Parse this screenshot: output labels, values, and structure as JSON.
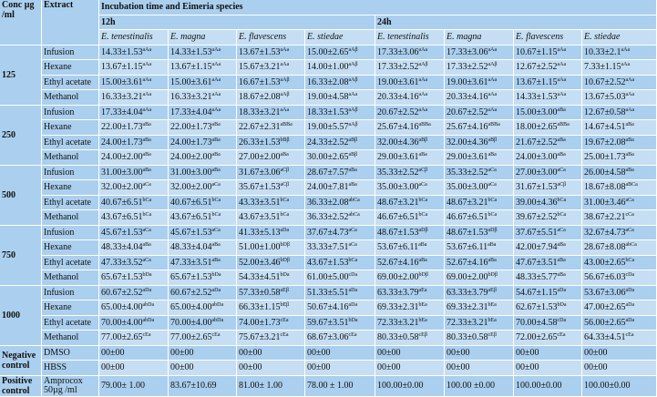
{
  "header": {
    "conc": "Conc µg /ml",
    "extract": "Extract",
    "incubation": "Incubation time and Eimeria species",
    "time_12h": "12h",
    "time_24h": "24h",
    "species": [
      "E. tenestinalis",
      "E. magna",
      "E. flavescens",
      "E. stiedae",
      "E. tenestinalis",
      "E. magna",
      "E. flavescens",
      "E. stiedae"
    ]
  },
  "groups": [
    {
      "conc": "125",
      "rows": [
        {
          "extract": "Infusion",
          "cells": [
            [
              "14.33±1.53",
              "aAa"
            ],
            [
              "14.33±1.53",
              "aAa"
            ],
            [
              "13.67±1.53",
              "aAa"
            ],
            [
              "15.00±2.65",
              "aAβ"
            ],
            [
              "17.33±3.06",
              "aAa"
            ],
            [
              "17.33±3.06",
              "aAa"
            ],
            [
              "10.67±1.15",
              "aAa"
            ],
            [
              "10.33±2.1",
              "aAa"
            ]
          ]
        },
        {
          "extract": "Hexane",
          "cells": [
            [
              "13.67±1.15",
              "aAa"
            ],
            [
              "13.67±1.15",
              "aAa"
            ],
            [
              "15.67±3.21",
              "aAa"
            ],
            [
              "14.00±1.00",
              "aAβ"
            ],
            [
              "17.33±2.52",
              "aAβ"
            ],
            [
              "17.33±2.52",
              "aAβ"
            ],
            [
              "12.67±2.52",
              "aAa"
            ],
            [
              "7.33±1.15",
              "aAa"
            ]
          ]
        },
        {
          "extract": "Ethyl acetate",
          "cells": [
            [
              "15.00±3.61",
              "aAa"
            ],
            [
              "15.00±3.61",
              "aAa"
            ],
            [
              "16.67±1.53",
              "aAβ"
            ],
            [
              "16.33±2.08",
              "aAβ"
            ],
            [
              "19.00±3.61",
              "aAa"
            ],
            [
              "19.00±3.61",
              "aAa"
            ],
            [
              "13.67±1.15",
              "aAa"
            ],
            [
              "10.67±2.52",
              "aAa"
            ]
          ]
        },
        {
          "extract": "Methanol",
          "cells": [
            [
              "16.33±3.21",
              "aAa"
            ],
            [
              "16.33±3.21",
              "aAa"
            ],
            [
              "18.67±2.08",
              "aAβ"
            ],
            [
              "19.00±4.58",
              "aAa"
            ],
            [
              "20.33±4.16",
              "aAa"
            ],
            [
              "20.33±4.16",
              "aAa"
            ],
            [
              "14.33±1.53",
              "aAa"
            ],
            [
              "13.67±5.03",
              "aAa"
            ]
          ]
        }
      ]
    },
    {
      "conc": "250",
      "rows": [
        {
          "extract": "Infusion",
          "cells": [
            [
              "17.33±4.04",
              "aAa"
            ],
            [
              "17.33±4.04",
              "aAa"
            ],
            [
              "18.33±3.21",
              "aAa"
            ],
            [
              "18.33±1.53",
              "aAβ"
            ],
            [
              "20.67±2.52",
              "aAa"
            ],
            [
              "20.67±2.52",
              "aAa"
            ],
            [
              "15.00±3.00",
              "aBa"
            ],
            [
              "12.67±0.58",
              "aAa"
            ]
          ]
        },
        {
          "extract": "Hexane",
          "cells": [
            [
              "22.00±1.73",
              "aBa"
            ],
            [
              "22.00±1.73",
              "aBa"
            ],
            [
              "22.67±2.31",
              "aBBa"
            ],
            [
              "19.00±5.57",
              "aAβ"
            ],
            [
              "25.67±4.16",
              "aBBa"
            ],
            [
              "25.67±4.16",
              "aBBa"
            ],
            [
              "18.00±2.65",
              "aBBa"
            ],
            [
              "14.67±4.51",
              "aBa"
            ]
          ]
        },
        {
          "extract": "Ethyl acetate",
          "cells": [
            [
              "24.00±1.73",
              "aBa"
            ],
            [
              "24.00±1.73",
              "aBa"
            ],
            [
              "26.33±1.53",
              "bBβ"
            ],
            [
              "24.33±2.52",
              "aBβ"
            ],
            [
              "32.00±4.36",
              "aBβ"
            ],
            [
              "32.00±4.36",
              "aBβ"
            ],
            [
              "21.67±2.52",
              "aBa"
            ],
            [
              "19.67±2.08",
              "aBa"
            ]
          ]
        },
        {
          "extract": "Methanol",
          "cells": [
            [
              "24.00±2.00",
              "aBa"
            ],
            [
              "24.00±2.00",
              "aBa"
            ],
            [
              "27.00±2.00",
              "aBa"
            ],
            [
              "30.00±2.65",
              "aBβ"
            ],
            [
              "29.00±3.61",
              "aBa"
            ],
            [
              "29.00±3.61",
              "aBa"
            ],
            [
              "24.00±3.00",
              "aBa"
            ],
            [
              "25.00±1.73",
              "aBa"
            ]
          ]
        }
      ]
    },
    {
      "conc": "500",
      "rows": [
        {
          "extract": "Infusion",
          "cells": [
            [
              "31.00±3.00",
              "aBa"
            ],
            [
              "31.00±3.00",
              "aBa"
            ],
            [
              "31.67±3.06",
              "aCβ"
            ],
            [
              "28.67±7.57",
              "aBa"
            ],
            [
              "35.33±2.52",
              "aCβ"
            ],
            [
              "35.33±2.52",
              "aCa"
            ],
            [
              "27.00±3.00",
              "aCa"
            ],
            [
              "26.00±4.58",
              "aBa"
            ]
          ]
        },
        {
          "extract": "Hexane",
          "cells": [
            [
              "32.00±2.00",
              "aCa"
            ],
            [
              "32.00±2.00",
              "aCa"
            ],
            [
              "35.67±1.53",
              "aCβ"
            ],
            [
              "24.00±7.81",
              "aBa"
            ],
            [
              "35.00±3.00",
              "aCa"
            ],
            [
              "35.00±3.00",
              "aCa"
            ],
            [
              "31.67±1.53",
              "aCβ"
            ],
            [
              "18.67±8.08",
              "aBCa"
            ]
          ]
        },
        {
          "extract": "Ethyl acetate",
          "cells": [
            [
              "40.67±6.51",
              "bCa"
            ],
            [
              "40.67±6.51",
              "bCa"
            ],
            [
              "43.33±3.51",
              "bCa"
            ],
            [
              "36.33±2.08",
              "abCa"
            ],
            [
              "48.67±3.21",
              "bCa"
            ],
            [
              "48.67±3.21",
              "bCa"
            ],
            [
              "39.00±4.36",
              "bCa"
            ],
            [
              "31.00±3.46",
              "aCa"
            ]
          ]
        },
        {
          "extract": "Methanol",
          "cells": [
            [
              "43.67±6.51",
              "bCa"
            ],
            [
              "43.67±6.51",
              "bCa"
            ],
            [
              "43.67±3.51",
              "bCa"
            ],
            [
              "36.33±2.52",
              "abCa"
            ],
            [
              "46.67±6.51",
              "bCa"
            ],
            [
              "46.67±6.51",
              "bCa"
            ],
            [
              "39.67±2.52",
              "bCa"
            ],
            [
              "38.67±2.21",
              "cCa"
            ]
          ]
        }
      ]
    },
    {
      "conc": "750",
      "rows": [
        {
          "extract": "Infusion",
          "cells": [
            [
              "45.67±1.53",
              "aCa"
            ],
            [
              "45.67±1.53",
              "aCa"
            ],
            [
              "41.33±5.13",
              "aDa"
            ],
            [
              "37.67±4.73",
              "aCa"
            ],
            [
              "48.67±1.53",
              "aDβ"
            ],
            [
              "48.67±1.53",
              "aDβ"
            ],
            [
              "37.67±5.51",
              "aCa"
            ],
            [
              "32.67±4.73",
              "aCa"
            ]
          ]
        },
        {
          "extract": "Hexane",
          "cells": [
            [
              "48.33±4.04",
              "aBa"
            ],
            [
              "48.33±4.04",
              "aBa"
            ],
            [
              "51.00±1.00",
              "bDβ"
            ],
            [
              "33.33±7.51",
              "aCa"
            ],
            [
              "53.67±6.11",
              "aBa"
            ],
            [
              "53.67±6.11",
              "aBa"
            ],
            [
              "42.00±7.94",
              "aBa"
            ],
            [
              "28.67±8.08",
              "abCa"
            ]
          ]
        },
        {
          "extract": "Ethyl acetate",
          "cells": [
            [
              "47.33±3.52",
              "aCa"
            ],
            [
              "47.33±3.51",
              "aBa"
            ],
            [
              "52.00±3.46",
              "bDβ"
            ],
            [
              "43.67±1.53",
              "bCa"
            ],
            [
              "52.67±4.16",
              "aBa"
            ],
            [
              "52.67±4.16",
              "aBa"
            ],
            [
              "47.67±3.51",
              "aBa"
            ],
            [
              "43.00±2.65",
              "bCa"
            ]
          ]
        },
        {
          "extract": "Methanol",
          "cells": [
            [
              "65.67±1.53",
              "bDa"
            ],
            [
              "65.67±1.53",
              "bDa"
            ],
            [
              "54.33±4.51",
              "bDa"
            ],
            [
              "61.00±5.00",
              "cDa"
            ],
            [
              "69.00±2.00",
              "bDβ"
            ],
            [
              "69.00±2.00",
              "bDβ"
            ],
            [
              "48.33±5.77",
              "aBa"
            ],
            [
              "56.67±6.03",
              "cDa"
            ]
          ]
        }
      ]
    },
    {
      "conc": "1000",
      "rows": [
        {
          "extract": "Infusion",
          "cells": [
            [
              "60.67±2.52",
              "aDa"
            ],
            [
              "60.67±2.52",
              "aDa"
            ],
            [
              "57.33±0.58",
              "aEβ"
            ],
            [
              "51.33±5.51",
              "aDa"
            ],
            [
              "63.33±3.79",
              "aEa"
            ],
            [
              "63.33±3.79",
              "aEβ"
            ],
            [
              "54.67±1.15",
              "aDa"
            ],
            [
              "53.67±3.06",
              "aDa"
            ]
          ]
        },
        {
          "extract": "Hexane",
          "cells": [
            [
              "65.00±4.00",
              "abDa"
            ],
            [
              "65.00±4.00",
              "abDa"
            ],
            [
              "66.33±1.15",
              "bEβ"
            ],
            [
              "50.67±4.16",
              "aDa"
            ],
            [
              "69.33±2.31",
              "bEa"
            ],
            [
              "69.33±2.31",
              "bEa"
            ],
            [
              "62.67±1.53",
              "bDa"
            ],
            [
              "47.00±2.65",
              "aDa"
            ]
          ]
        },
        {
          "extract": "Ethyl acetate",
          "cells": [
            [
              "70.00±4.00",
              "abDa"
            ],
            [
              "70.00±4.00",
              "abDa"
            ],
            [
              "74.00±1.73",
              "cEa"
            ],
            [
              "59.67±3.51",
              "bDa"
            ],
            [
              "72.33±3.21",
              "bEa"
            ],
            [
              "72.33±3.21",
              "bEa"
            ],
            [
              "70.00±4.58",
              "cDa"
            ],
            [
              "56.00±2.65",
              "aDa"
            ]
          ]
        },
        {
          "extract": "Methanol",
          "cells": [
            [
              "77.00±2.65",
              "cEa"
            ],
            [
              "77.00±2.65",
              "cEa"
            ],
            [
              "75.67±3.21",
              "cEa"
            ],
            [
              "68.67±3.06",
              "cEa"
            ],
            [
              "80.33±0.58",
              "cEβ"
            ],
            [
              "80.33±0.58",
              "cEβ"
            ],
            [
              "72.00±2.65",
              "cEa"
            ],
            [
              "64.33±4.51",
              "cEa"
            ]
          ]
        }
      ]
    },
    {
      "conc": "Negative control",
      "rows": [
        {
          "extract": "DMSO",
          "cells": [
            [
              "00±00",
              ""
            ],
            [
              "00±00",
              ""
            ],
            [
              "00±00",
              ""
            ],
            [
              "00±00",
              ""
            ],
            [
              "00±00",
              ""
            ],
            [
              "00±00",
              ""
            ],
            [
              "00±00",
              ""
            ],
            [
              "00±00",
              ""
            ]
          ]
        },
        {
          "extract": "HBSS",
          "cells": [
            [
              "00±00",
              ""
            ],
            [
              "00±00",
              ""
            ],
            [
              "00±00",
              ""
            ],
            [
              "00±00",
              ""
            ],
            [
              "00±00",
              ""
            ],
            [
              "00±00",
              ""
            ],
            [
              "00±00",
              ""
            ],
            [
              "00±00",
              ""
            ]
          ]
        }
      ]
    },
    {
      "conc": "Positive control",
      "rows": [
        {
          "extract": "Amprocox 50µg /ml",
          "cells": [
            [
              "79.00±   1.00",
              ""
            ],
            [
              "83.67±10.69",
              ""
            ],
            [
              "81.00±   1.00",
              ""
            ],
            [
              "78.00 ±   1.00",
              ""
            ],
            [
              "100.00±0.00",
              ""
            ],
            [
              "100.00   ±0.00",
              ""
            ],
            [
              "100.00±0.00",
              ""
            ],
            [
              "100.00±0.00",
              ""
            ]
          ]
        }
      ]
    }
  ]
}
